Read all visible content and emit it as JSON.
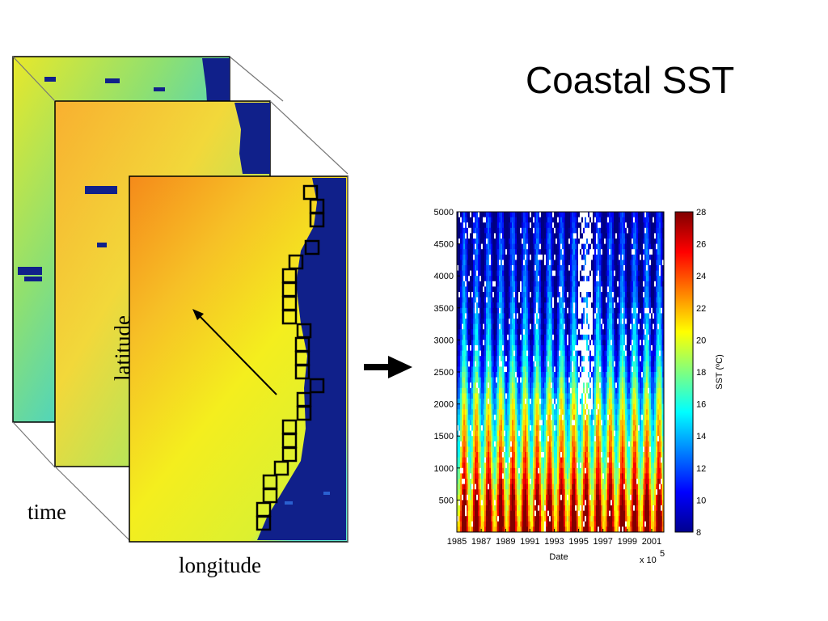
{
  "title": "Coastal SST",
  "labels": {
    "time": "time",
    "longitude": "longitude",
    "latitude": "latitude"
  },
  "colors": {
    "ocean_warm": "#f5a020",
    "ocean_mid": "#f2e81c",
    "land": "#10208a",
    "box_outline": "#000000"
  },
  "chart_data": {
    "type": "heatmap",
    "title": "",
    "xlabel": "Date",
    "ylabel": "",
    "x_tick_labels": [
      "1985",
      "1987",
      "1989",
      "1991",
      "1993",
      "1995",
      "1997",
      "1999",
      "2001"
    ],
    "x_exponent_label": "x 10",
    "x_exponent_power": "5",
    "y_ticks": [
      500,
      1000,
      1500,
      2000,
      2500,
      3000,
      3500,
      4000,
      4500,
      5000
    ],
    "ylim": [
      0,
      5000
    ],
    "x_years": [
      1985,
      2002
    ],
    "colorbar": {
      "label": "SST (ºC)",
      "range": [
        8,
        28
      ],
      "ticks": [
        8,
        10,
        12,
        14,
        16,
        18,
        20,
        22,
        24,
        26,
        28
      ]
    },
    "seasonal_cycle_years": 17,
    "profile_by_y": [
      {
        "y": 0,
        "sst": 26
      },
      {
        "y": 500,
        "sst": 24
      },
      {
        "y": 1000,
        "sst": 21
      },
      {
        "y": 1500,
        "sst": 19
      },
      {
        "y": 2000,
        "sst": 17
      },
      {
        "y": 2500,
        "sst": 14
      },
      {
        "y": 3000,
        "sst": 12
      },
      {
        "y": 3500,
        "sst": 11
      },
      {
        "y": 4000,
        "sst": 10
      },
      {
        "y": 4500,
        "sst": 10
      },
      {
        "y": 5000,
        "sst": 9
      }
    ]
  }
}
